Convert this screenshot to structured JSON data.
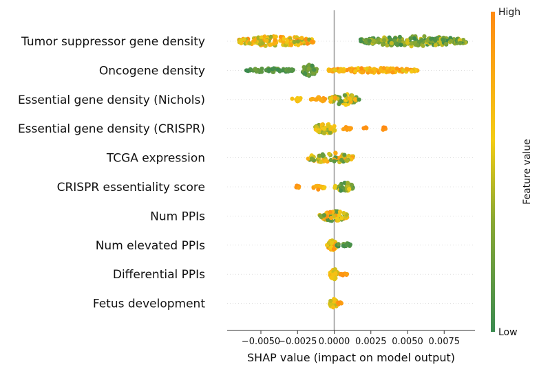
{
  "chart_data": {
    "type": "scatter",
    "subtype": "shap-beeswarm",
    "title": "",
    "xlabel": "SHAP value (impact on model output)",
    "xlim": [
      -0.0073,
      0.0096
    ],
    "xticks": [
      -0.005,
      -0.0025,
      0.0,
      0.0025,
      0.005,
      0.0075
    ],
    "xtick_labels": [
      "−0.0050",
      "−0.0025",
      "0.0000",
      "0.0025",
      "0.0050",
      "0.0075"
    ],
    "grid": false,
    "zero_line": true,
    "colorbar": {
      "label": "Feature value",
      "high_label": "High",
      "low_label": "Low",
      "colors": {
        "low": "#3a8a4f",
        "mid_low": "#8aa832",
        "mid": "#f4cc14",
        "high": "#ff8a12"
      }
    },
    "features": [
      {
        "name": "Tumor suppressor gene density",
        "clusters": [
          {
            "min": -0.0065,
            "max": -0.0014,
            "count": 170,
            "spread": 15,
            "value_lo": 0.35,
            "value_hi": 1.0
          },
          {
            "min": 0.0018,
            "max": 0.009,
            "count": 200,
            "spread": 15,
            "value_lo": 0.0,
            "value_hi": 0.55
          }
        ]
      },
      {
        "name": "Oncogene density",
        "clusters": [
          {
            "min": -0.006,
            "max": -0.0027,
            "count": 55,
            "spread": 6,
            "value_lo": 0.0,
            "value_hi": 0.25
          },
          {
            "min": -0.0022,
            "max": -0.0012,
            "count": 45,
            "spread": 16,
            "value_lo": 0.0,
            "value_hi": 0.35
          },
          {
            "min": -0.0004,
            "max": 0.0057,
            "count": 130,
            "spread": 7,
            "value_lo": 0.55,
            "value_hi": 1.0
          }
        ]
      },
      {
        "name": "Essential gene density (Nichols)",
        "clusters": [
          {
            "min": -0.0029,
            "max": -0.0022,
            "count": 12,
            "spread": 6,
            "value_lo": 0.6,
            "value_hi": 0.7
          },
          {
            "min": -0.0016,
            "max": -0.0006,
            "count": 25,
            "spread": 7,
            "value_lo": 0.75,
            "value_hi": 1.0
          },
          {
            "min": -0.0003,
            "max": 0.0017,
            "count": 60,
            "spread": 16,
            "value_lo": 0.1,
            "value_hi": 0.9
          }
        ]
      },
      {
        "name": "Essential gene density (CRISPR)",
        "clusters": [
          {
            "min": -0.0013,
            "max": 0.0001,
            "count": 45,
            "spread": 15,
            "value_lo": 0.3,
            "value_hi": 0.75
          },
          {
            "min": 0.0006,
            "max": 0.0012,
            "count": 10,
            "spread": 5,
            "value_lo": 0.85,
            "value_hi": 1.0
          },
          {
            "min": 0.002,
            "max": 0.0022,
            "count": 5,
            "spread": 5,
            "value_lo": 0.9,
            "value_hi": 1.0
          },
          {
            "min": 0.0033,
            "max": 0.0035,
            "count": 5,
            "spread": 5,
            "value_lo": 0.9,
            "value_hi": 1.0
          }
        ]
      },
      {
        "name": "TCGA expression",
        "clusters": [
          {
            "min": -0.0018,
            "max": 0.0013,
            "count": 70,
            "spread": 15,
            "value_lo": 0.1,
            "value_hi": 0.9
          }
        ]
      },
      {
        "name": "CRISPR essentiality score",
        "clusters": [
          {
            "min": -0.0026,
            "max": -0.0024,
            "count": 5,
            "spread": 5,
            "value_lo": 0.85,
            "value_hi": 1.0
          },
          {
            "min": -0.0015,
            "max": -0.0006,
            "count": 15,
            "spread": 8,
            "value_lo": 0.6,
            "value_hi": 1.0
          },
          {
            "min": 0.0,
            "max": 0.0013,
            "count": 35,
            "spread": 14,
            "value_lo": 0.0,
            "value_hi": 0.6
          }
        ]
      },
      {
        "name": "Num PPIs",
        "clusters": [
          {
            "min": -0.001,
            "max": 0.0009,
            "count": 75,
            "spread": 15,
            "value_lo": 0.1,
            "value_hi": 0.95
          }
        ]
      },
      {
        "name": "Num elevated PPIs",
        "clusters": [
          {
            "min": -0.0005,
            "max": 0.0002,
            "count": 40,
            "spread": 15,
            "value_lo": 0.4,
            "value_hi": 1.0
          },
          {
            "min": 0.0002,
            "max": 0.0011,
            "count": 25,
            "spread": 7,
            "value_lo": 0.0,
            "value_hi": 0.25
          }
        ]
      },
      {
        "name": "Differential PPIs",
        "clusters": [
          {
            "min": -0.0003,
            "max": 0.0003,
            "count": 45,
            "spread": 15,
            "value_lo": 0.45,
            "value_hi": 0.75
          },
          {
            "min": 0.0004,
            "max": 0.0009,
            "count": 8,
            "spread": 4,
            "value_lo": 0.85,
            "value_hi": 1.0
          }
        ]
      },
      {
        "name": "Fetus development",
        "clusters": [
          {
            "min": -0.0003,
            "max": 0.0002,
            "count": 40,
            "spread": 14,
            "value_lo": 0.45,
            "value_hi": 0.7
          },
          {
            "min": 0.0002,
            "max": 0.0005,
            "count": 6,
            "spread": 4,
            "value_lo": 0.8,
            "value_hi": 1.0
          }
        ]
      }
    ]
  }
}
